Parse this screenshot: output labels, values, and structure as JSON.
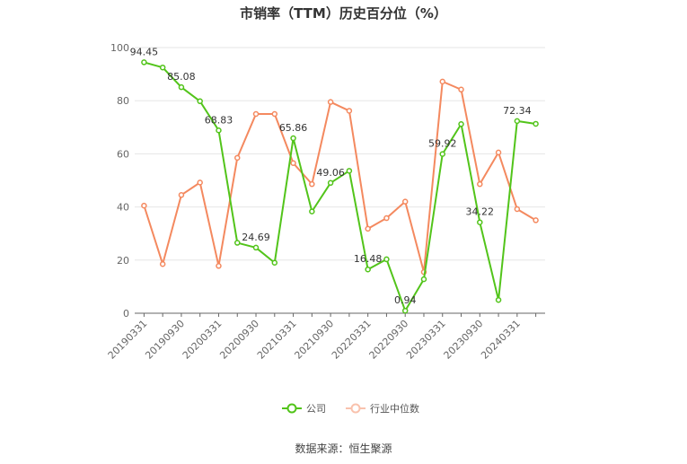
{
  "chart_data": {
    "type": "line",
    "title": "市销率（TTM）历史百分位（%）",
    "source": "数据来源：恒生聚源",
    "ylim": [
      0,
      100
    ],
    "yticks": [
      0,
      20,
      40,
      60,
      80,
      100
    ],
    "grid": true,
    "legend_position": "bottom",
    "x": [
      "20190331",
      "20190630",
      "20190930",
      "20191231",
      "20200331",
      "20200630",
      "20200930",
      "20201231",
      "20210331",
      "20210630",
      "20210930",
      "20211231",
      "20220331",
      "20220630",
      "20220930",
      "20221231",
      "20230331",
      "20230630",
      "20230930",
      "20231231",
      "20240331",
      "20240630"
    ],
    "x_tick_labels": [
      "20190331",
      "20190930",
      "20200331",
      "20200930",
      "20210331",
      "20210930",
      "20220331",
      "20220930",
      "20230331",
      "20230930",
      "20240331"
    ],
    "series": [
      {
        "name": "公司",
        "color": "#52c41a",
        "values": [
          94.45,
          92.5,
          85.08,
          79.8,
          68.83,
          26.5,
          24.69,
          19.0,
          65.86,
          38.3,
          49.06,
          53.6,
          16.48,
          20.3,
          0.94,
          12.8,
          59.92,
          71.2,
          34.22,
          5.0,
          72.34,
          71.3
        ],
        "labels": [
          "94.45",
          null,
          "85.08",
          null,
          "68.83",
          null,
          "24.69",
          null,
          "65.86",
          null,
          "49.06",
          null,
          "16.48",
          null,
          "0.94",
          null,
          "59.92",
          null,
          "34.22",
          null,
          "72.34",
          null
        ]
      },
      {
        "name": "行业中位数",
        "color": "#f4895f",
        "values": [
          40.5,
          18.5,
          44.5,
          49.2,
          17.8,
          58.5,
          75.0,
          75.0,
          56.5,
          48.6,
          79.5,
          76.2,
          31.8,
          35.8,
          42.0,
          15.5,
          87.2,
          84.2,
          48.6,
          60.5,
          39.2,
          35.0
        ]
      }
    ]
  }
}
